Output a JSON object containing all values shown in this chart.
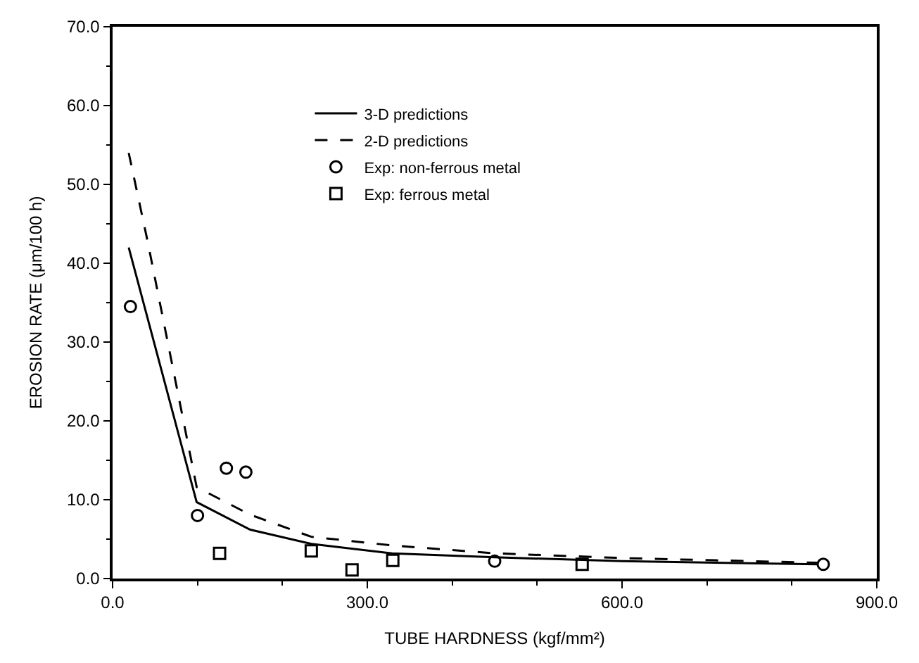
{
  "chart_data": {
    "type": "line",
    "xlabel": "TUBE HARDNESS (kgf/mm²)",
    "ylabel": "EROSION RATE (μm/100 h)",
    "xlim": [
      0,
      900
    ],
    "ylim": [
      0,
      70
    ],
    "xticks": [
      {
        "value": 0,
        "label": "0.0"
      },
      {
        "value": 300,
        "label": "300.0"
      },
      {
        "value": 600,
        "label": "600.0"
      },
      {
        "value": 900,
        "label": "900.0"
      }
    ],
    "yticks": [
      {
        "value": 0,
        "label": "0.0"
      },
      {
        "value": 10,
        "label": "10.0"
      },
      {
        "value": 20,
        "label": "20.0"
      },
      {
        "value": 30,
        "label": "30.0"
      },
      {
        "value": 40,
        "label": "40.0"
      },
      {
        "value": 50,
        "label": "50.0"
      },
      {
        "value": 60,
        "label": "60.0"
      },
      {
        "value": 70,
        "label": "70.0"
      }
    ],
    "legend": "top",
    "series": [
      {
        "name": "3-D predictions",
        "line_style": "solid",
        "marker": "none",
        "color": "#000000",
        "x": [
          19,
          99,
          162,
          234,
          329,
          450,
          600,
          830
        ],
        "values": [
          42,
          9.7,
          6.2,
          4.4,
          3.2,
          2.7,
          2.2,
          1.8
        ]
      },
      {
        "name": "2-D predictions",
        "line_style": "dashed",
        "marker": "none",
        "color": "#000000",
        "x": [
          19,
          41,
          99,
          162,
          234,
          329,
          450,
          600,
          830
        ],
        "values": [
          54,
          42.9,
          11.6,
          8.1,
          5.3,
          4.2,
          3.2,
          2.6,
          2.0
        ]
      },
      {
        "name": "Exp: non-ferrous metal",
        "type": "scatter",
        "marker": "circle",
        "color": "#000000",
        "x": [
          21,
          100,
          134,
          157,
          450,
          837
        ],
        "values": [
          34.5,
          8.0,
          14.0,
          13.5,
          2.2,
          1.8
        ]
      },
      {
        "name": "Exp: ferrous metal",
        "type": "scatter",
        "marker": "square",
        "color": "#000000",
        "x": [
          126,
          234,
          282,
          330,
          553
        ],
        "values": [
          3.2,
          3.5,
          1.1,
          2.3,
          1.8
        ]
      }
    ]
  }
}
